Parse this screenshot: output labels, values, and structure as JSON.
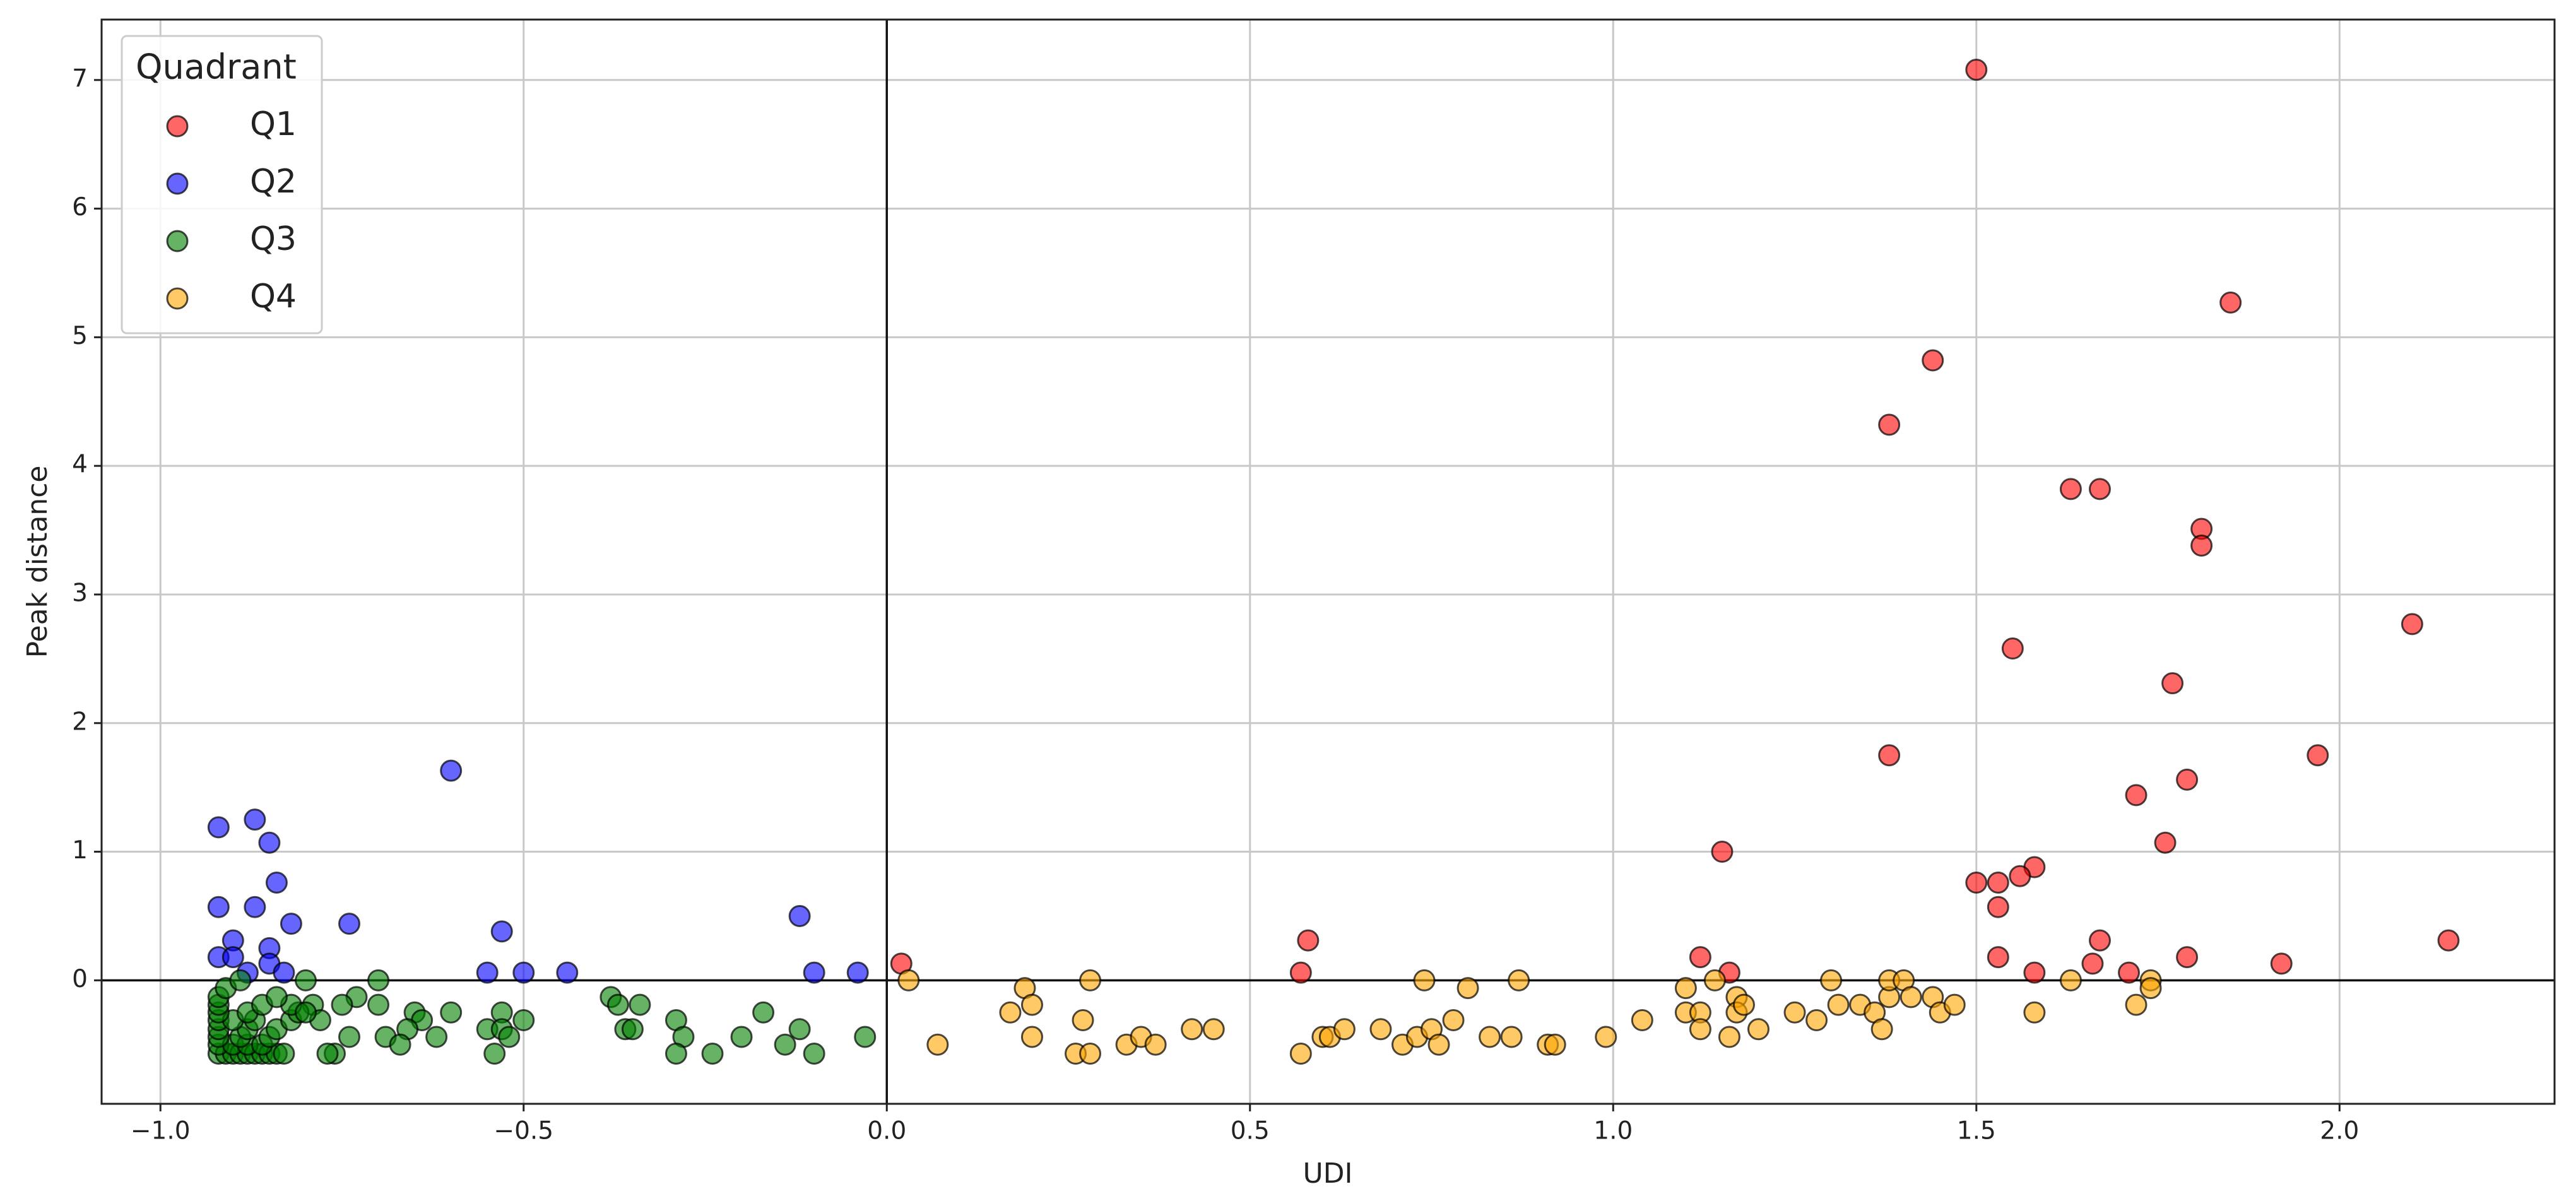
{
  "chart_data": {
    "type": "scatter",
    "xlabel": "UDI",
    "ylabel": "Peak distance",
    "xlim": [
      -1.081,
      2.296
    ],
    "ylim": [
      -0.96,
      7.47
    ],
    "xticks": [
      {
        "value": -1.0,
        "label": "−1.0"
      },
      {
        "value": -0.5,
        "label": "−0.5"
      },
      {
        "value": 0.0,
        "label": "0.0"
      },
      {
        "value": 0.5,
        "label": "0.5"
      },
      {
        "value": 1.0,
        "label": "1.0"
      },
      {
        "value": 1.5,
        "label": "1.5"
      },
      {
        "value": 2.0,
        "label": "2.0"
      }
    ],
    "yticks": [
      0,
      1,
      2,
      3,
      4,
      5,
      6,
      7
    ],
    "grid": true,
    "reference_lines": {
      "x": 0,
      "y": 0
    },
    "alpha": 0.6,
    "edgecolor": "black",
    "legend_title": "Quadrant",
    "legend_position": "upper left",
    "series": [
      {
        "name": "Q1",
        "color": "red",
        "x": [
          1.5,
          1.85,
          1.44,
          1.38,
          1.63,
          1.67,
          1.81,
          1.81,
          2.1,
          1.55,
          1.77,
          1.38,
          1.97,
          1.79,
          1.72,
          1.76,
          1.15,
          1.58,
          1.56,
          1.53,
          1.5,
          1.53,
          0.58,
          1.67,
          2.15,
          1.12,
          1.53,
          1.79,
          1.92,
          1.66,
          0.02,
          0.57,
          1.16,
          1.58,
          1.71
        ],
        "y": [
          7.08,
          5.27,
          4.82,
          4.32,
          3.82,
          3.82,
          3.51,
          3.38,
          2.77,
          2.58,
          2.31,
          1.75,
          1.75,
          1.56,
          1.44,
          1.07,
          1.0,
          0.88,
          0.81,
          0.76,
          0.76,
          0.57,
          0.31,
          0.31,
          0.31,
          0.18,
          0.18,
          0.18,
          0.13,
          0.13,
          0.13,
          0.06,
          0.06,
          0.06,
          0.06
        ]
      },
      {
        "name": "Q2",
        "color": "blue",
        "x": [
          -0.6,
          -0.87,
          -0.92,
          -0.85,
          -0.84,
          -0.92,
          -0.87,
          -0.12,
          -0.82,
          -0.74,
          -0.53,
          -0.9,
          -0.85,
          -0.92,
          -0.9,
          -0.85,
          -0.55,
          -0.5,
          -0.44,
          -0.1,
          -0.04,
          -0.88,
          -0.83
        ],
        "y": [
          1.63,
          1.25,
          1.19,
          1.07,
          0.76,
          0.57,
          0.57,
          0.5,
          0.44,
          0.44,
          0.38,
          0.31,
          0.25,
          0.18,
          0.18,
          0.13,
          0.06,
          0.06,
          0.06,
          0.06,
          0.06,
          0.06,
          0.06
        ]
      },
      {
        "name": "Q3",
        "color": "green",
        "x": [
          -0.8,
          -0.7,
          -0.73,
          -0.79,
          -0.75,
          -0.7,
          -0.65,
          -0.6,
          -0.53,
          -0.38,
          -0.37,
          -0.34,
          -0.64,
          -0.55,
          -0.5,
          -0.53,
          -0.36,
          -0.35,
          -0.29,
          -0.12,
          -0.17,
          -0.2,
          -0.14,
          -0.03,
          -0.28,
          -0.29,
          -0.24,
          -0.1,
          -0.54,
          -0.52,
          -0.62,
          -0.66,
          -0.69,
          -0.67,
          -0.74,
          -0.76,
          -0.77,
          -0.92,
          -0.91,
          -0.9,
          -0.89,
          -0.88,
          -0.87,
          -0.86,
          -0.85,
          -0.84,
          -0.83,
          -0.92,
          -0.9,
          -0.88,
          -0.86,
          -0.92,
          -0.89,
          -0.85,
          -0.92,
          -0.88,
          -0.84,
          -0.92,
          -0.9,
          -0.87,
          -0.82,
          -0.92,
          -0.88,
          -0.81,
          -0.92,
          -0.86,
          -0.82,
          -0.92,
          -0.84,
          -0.91,
          -0.89,
          -0.78,
          -0.8
        ],
        "y": [
          0.0,
          0.0,
          -0.13,
          -0.19,
          -0.19,
          -0.19,
          -0.25,
          -0.25,
          -0.25,
          -0.13,
          -0.19,
          -0.19,
          -0.31,
          -0.38,
          -0.31,
          -0.38,
          -0.38,
          -0.38,
          -0.31,
          -0.38,
          -0.25,
          -0.44,
          -0.5,
          -0.44,
          -0.44,
          -0.57,
          -0.57,
          -0.57,
          -0.57,
          -0.44,
          -0.44,
          -0.38,
          -0.44,
          -0.5,
          -0.44,
          -0.57,
          -0.57,
          -0.57,
          -0.57,
          -0.57,
          -0.57,
          -0.57,
          -0.57,
          -0.57,
          -0.57,
          -0.57,
          -0.57,
          -0.5,
          -0.5,
          -0.5,
          -0.5,
          -0.44,
          -0.44,
          -0.44,
          -0.38,
          -0.38,
          -0.38,
          -0.31,
          -0.31,
          -0.31,
          -0.31,
          -0.25,
          -0.25,
          -0.25,
          -0.19,
          -0.19,
          -0.19,
          -0.13,
          -0.13,
          -0.06,
          0.0,
          -0.31,
          -0.25
        ]
      },
      {
        "name": "Q4",
        "color": "orange",
        "x": [
          0.03,
          0.07,
          0.17,
          0.19,
          0.2,
          0.2,
          0.26,
          0.27,
          0.28,
          0.28,
          0.33,
          0.35,
          0.37,
          0.42,
          0.45,
          0.57,
          0.6,
          0.61,
          0.63,
          0.68,
          0.71,
          0.73,
          0.74,
          0.75,
          0.76,
          0.78,
          0.8,
          0.83,
          0.86,
          0.87,
          0.91,
          0.92,
          0.99,
          1.04,
          1.1,
          1.1,
          1.12,
          1.12,
          1.14,
          1.16,
          1.17,
          1.17,
          1.18,
          1.2,
          1.25,
          1.28,
          1.3,
          1.31,
          1.34,
          1.36,
          1.37,
          1.38,
          1.38,
          1.4,
          1.41,
          1.44,
          1.45,
          1.47,
          1.58,
          1.63,
          1.72,
          1.74,
          1.74
        ],
        "y": [
          0.0,
          -0.5,
          -0.25,
          -0.06,
          -0.19,
          -0.44,
          -0.57,
          -0.31,
          -0.57,
          0.0,
          -0.5,
          -0.44,
          -0.5,
          -0.38,
          -0.38,
          -0.57,
          -0.44,
          -0.44,
          -0.38,
          -0.38,
          -0.5,
          -0.44,
          0.0,
          -0.38,
          -0.5,
          -0.31,
          -0.06,
          -0.44,
          -0.44,
          0.0,
          -0.5,
          -0.5,
          -0.44,
          -0.31,
          -0.06,
          -0.25,
          -0.25,
          -0.38,
          0.0,
          -0.44,
          -0.13,
          -0.25,
          -0.19,
          -0.38,
          -0.25,
          -0.31,
          0.0,
          -0.19,
          -0.19,
          -0.25,
          -0.38,
          -0.13,
          0.0,
          0.0,
          -0.13,
          -0.13,
          -0.25,
          -0.19,
          -0.25,
          0.0,
          -0.19,
          0.0,
          -0.06
        ]
      }
    ]
  }
}
